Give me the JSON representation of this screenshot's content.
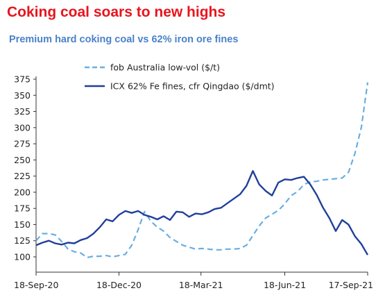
{
  "header": {
    "title": "Coking coal soars to new highs",
    "subtitle": "Premium hard coking coal vs 62% iron ore fines"
  },
  "colors": {
    "title": "#e8141e",
    "subtitle": "#4a82c8",
    "coal": "#6aaee0",
    "iron": "#1f3f9b"
  },
  "chart_data": {
    "type": "line",
    "title": "Coking coal soars to new highs",
    "subtitle": "Premium hard coking coal vs 62% iron ore fines",
    "xlabel": "",
    "ylabel": "",
    "ylim": [
      100,
      375
    ],
    "xlim": [
      "2020-09-18",
      "2021-09-17"
    ],
    "yticks": [
      "100",
      "125",
      "150",
      "175",
      "200",
      "225",
      "250",
      "275",
      "300",
      "325",
      "350",
      "375"
    ],
    "xticks": [
      {
        "label": "18-Sep-20",
        "date": "2020-09-18"
      },
      {
        "label": "18-Dec-20",
        "date": "2020-12-18"
      },
      {
        "label": "18-Mar-21",
        "date": "2021-03-18"
      },
      {
        "label": "18-Jun-21",
        "date": "2021-06-18"
      },
      {
        "label": "17-Sep-21",
        "date": "2021-09-17"
      }
    ],
    "grid": false,
    "legend_position": "top",
    "series": [
      {
        "name": "fob Australia low-vol ($/t)",
        "style": "dashed",
        "x": [
          "2020-09-18",
          "2020-09-25",
          "2020-10-02",
          "2020-10-09",
          "2020-10-16",
          "2020-10-23",
          "2020-10-30",
          "2020-11-06",
          "2020-11-13",
          "2020-11-20",
          "2020-11-27",
          "2020-12-04",
          "2020-12-11",
          "2020-12-18",
          "2020-12-25",
          "2021-01-01",
          "2021-01-08",
          "2021-01-15",
          "2021-01-22",
          "2021-01-29",
          "2021-02-05",
          "2021-02-12",
          "2021-02-19",
          "2021-02-26",
          "2021-03-05",
          "2021-03-12",
          "2021-03-19",
          "2021-03-26",
          "2021-04-02",
          "2021-04-09",
          "2021-04-16",
          "2021-04-23",
          "2021-04-30",
          "2021-05-07",
          "2021-05-14",
          "2021-05-21",
          "2021-05-28",
          "2021-06-04",
          "2021-06-11",
          "2021-06-18",
          "2021-06-25",
          "2021-07-02",
          "2021-07-09",
          "2021-07-16",
          "2021-07-23",
          "2021-07-30",
          "2021-08-06",
          "2021-08-13",
          "2021-08-20",
          "2021-08-27",
          "2021-09-03",
          "2021-09-10",
          "2021-09-17"
        ],
        "values": [
          125,
          136,
          136,
          134,
          124,
          112,
          108,
          106,
          99,
          101,
          101,
          102,
          100,
          102,
          104,
          118,
          142,
          170,
          155,
          146,
          140,
          130,
          124,
          118,
          115,
          112,
          113,
          112,
          111,
          111,
          112,
          112,
          113,
          118,
          133,
          148,
          160,
          166,
          172,
          182,
          195,
          201,
          212,
          216,
          217,
          219,
          220,
          221,
          222,
          231,
          260,
          300,
          370
        ]
      },
      {
        "name": "ICX 62% Fe fines, cfr Qingdao ($/dmt)",
        "style": "solid",
        "x": [
          "2020-09-18",
          "2020-09-25",
          "2020-10-02",
          "2020-10-09",
          "2020-10-16",
          "2020-10-23",
          "2020-10-30",
          "2020-11-06",
          "2020-11-13",
          "2020-11-20",
          "2020-11-27",
          "2020-12-04",
          "2020-12-11",
          "2020-12-18",
          "2020-12-25",
          "2021-01-01",
          "2021-01-08",
          "2021-01-15",
          "2021-01-22",
          "2021-01-29",
          "2021-02-05",
          "2021-02-12",
          "2021-02-19",
          "2021-02-26",
          "2021-03-05",
          "2021-03-12",
          "2021-03-19",
          "2021-03-26",
          "2021-04-02",
          "2021-04-09",
          "2021-04-16",
          "2021-04-23",
          "2021-04-30",
          "2021-05-07",
          "2021-05-14",
          "2021-05-21",
          "2021-05-28",
          "2021-06-04",
          "2021-06-11",
          "2021-06-18",
          "2021-06-25",
          "2021-07-02",
          "2021-07-09",
          "2021-07-16",
          "2021-07-23",
          "2021-07-30",
          "2021-08-06",
          "2021-08-13",
          "2021-08-20",
          "2021-08-27",
          "2021-09-03",
          "2021-09-10",
          "2021-09-17"
        ],
        "values": [
          118,
          122,
          125,
          121,
          119,
          122,
          121,
          126,
          129,
          136,
          146,
          158,
          155,
          165,
          171,
          168,
          171,
          165,
          162,
          158,
          163,
          157,
          170,
          169,
          162,
          167,
          166,
          169,
          174,
          176,
          183,
          190,
          197,
          210,
          233,
          212,
          202,
          195,
          215,
          220,
          219,
          222,
          224,
          212,
          196,
          176,
          160,
          140,
          157,
          150,
          132,
          120,
          103
        ]
      }
    ]
  }
}
